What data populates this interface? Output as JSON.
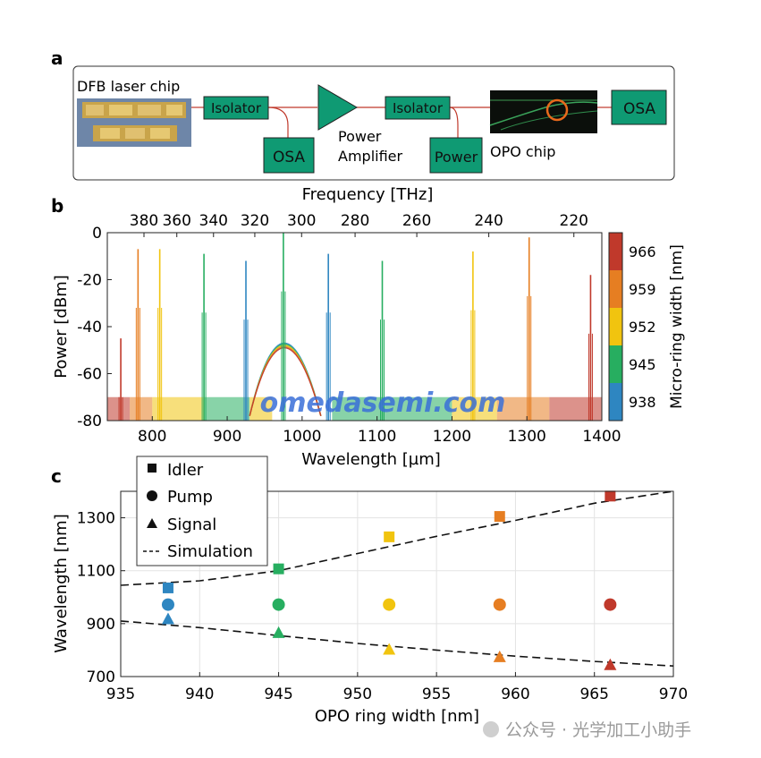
{
  "figure": {
    "panels": {
      "a": "a",
      "b": "b",
      "c": "c"
    },
    "colors": {
      "green_box": "#0f9a73",
      "red_line": "#c0392b",
      "amp": "#0f9a73"
    },
    "watermark": {
      "site": "omedasemi.com",
      "credit": "公众号 · 光学加工小助手"
    }
  },
  "setup": {
    "laser_label": "DFB laser chip",
    "isolator_1": "Isolator",
    "isolator_2": "Isolator",
    "osa_1": "OSA",
    "osa_2": "OSA",
    "power": "Power",
    "amplifier_line1": "Power",
    "amplifier_line2": "Amplifier",
    "opo_label": "OPO chip"
  },
  "spectrum": {
    "top_axis_label": "Frequency [THz]",
    "top_ticks": [
      "380",
      "360",
      "340",
      "320",
      "300",
      "280",
      "260",
      "240",
      "220"
    ],
    "xlabel": "Wavelength [µm]",
    "ylabel": "Power [dBm]",
    "xticks": [
      "800",
      "900",
      "1000",
      "1100",
      "1200",
      "1300",
      "1400"
    ],
    "yticks": [
      "0",
      "-20",
      "-40",
      "-60",
      "-80"
    ],
    "colorbar_label": "Micro-ring width [nm]",
    "colorbar_ticks": [
      "966",
      "959",
      "952",
      "945",
      "938"
    ],
    "colorbar_colors": [
      "#c0392b",
      "#e67e22",
      "#f1c40f",
      "#27ae60",
      "#2e86c1"
    ]
  },
  "chart_data": {
    "type": "scatter",
    "xlabel": "OPO ring width [nm]",
    "ylabel": "Wavelength [nm]",
    "xlim": [
      935,
      970
    ],
    "ylim": [
      700,
      1400
    ],
    "xticks": [
      "935",
      "940",
      "945",
      "950",
      "955",
      "960",
      "965",
      "970"
    ],
    "yticks": [
      "1300",
      "1100",
      "900",
      "700"
    ],
    "grid": true,
    "legend_position": "top-left",
    "legend": [
      "Idler",
      "Pump",
      "Signal",
      "Simulation"
    ],
    "colors": [
      "#2e86c1",
      "#27ae60",
      "#f1c40f",
      "#e67e22",
      "#c0392b"
    ],
    "x": [
      938,
      945,
      952,
      959,
      966
    ],
    "series": [
      {
        "name": "Idler",
        "marker": "square",
        "values": [
          1035,
          1107,
          1228,
          1305,
          1382
        ]
      },
      {
        "name": "Pump",
        "marker": "circle",
        "values": [
          972,
          972,
          972,
          972,
          972
        ]
      },
      {
        "name": "Signal",
        "marker": "triangle",
        "values": [
          918,
          866,
          803,
          775,
          745
        ]
      }
    ],
    "simulation": {
      "name": "Simulation",
      "idler": {
        "x": [
          935,
          940,
          945,
          950,
          955,
          960,
          965,
          970
        ],
        "y": [
          1045,
          1062,
          1100,
          1165,
          1230,
          1290,
          1355,
          1408
        ]
      },
      "signal": {
        "x": [
          935,
          940,
          945,
          950,
          955,
          960,
          965,
          970
        ],
        "y": [
          910,
          885,
          855,
          825,
          800,
          777,
          757,
          740
        ]
      }
    }
  }
}
